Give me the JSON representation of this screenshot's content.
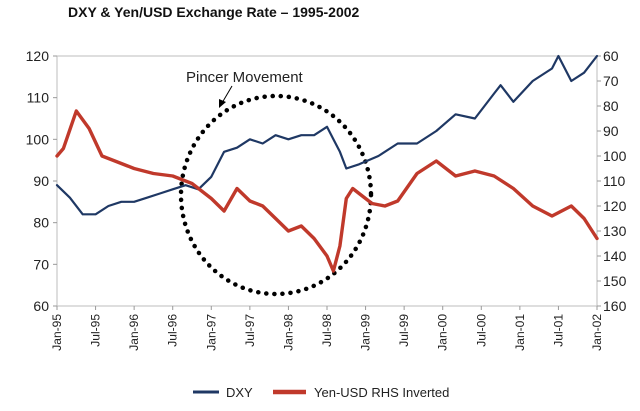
{
  "chart_data": {
    "type": "line",
    "title": "DXY & Yen/USD Exchange Rate – 1995-2002",
    "x_tick_labels": [
      "Jan-95",
      "Jul-95",
      "Jan-96",
      "Jul-96",
      "Jan-97",
      "Jul-97",
      "Jan-98",
      "Jul-98",
      "Jan-99",
      "Jul-99",
      "Jan-00",
      "Jul-00",
      "Jan-01",
      "Jul-01",
      "Jan-02"
    ],
    "y_left": {
      "min": 60,
      "max": 120,
      "ticks": [
        60,
        70,
        80,
        90,
        100,
        110,
        120
      ]
    },
    "y_right": {
      "min": 60,
      "max": 160,
      "inverted": true,
      "ticks": [
        60,
        70,
        80,
        90,
        100,
        110,
        120,
        130,
        140,
        150,
        160
      ]
    },
    "annotation": "Pincer Movement",
    "grid": false,
    "legend_position": "bottom",
    "series": [
      {
        "name": "DXY",
        "axis": "left",
        "color": "#1f3864",
        "x": [
          "1995-01",
          "1995-03",
          "1995-05",
          "1995-07",
          "1995-09",
          "1995-11",
          "1996-01",
          "1996-03",
          "1996-05",
          "1996-07",
          "1996-09",
          "1996-11",
          "1997-01",
          "1997-03",
          "1997-05",
          "1997-07",
          "1997-09",
          "1997-11",
          "1998-01",
          "1998-03",
          "1998-05",
          "1998-07",
          "1998-08",
          "1998-09",
          "1998-10",
          "1998-12",
          "1999-03",
          "1999-06",
          "1999-09",
          "1999-12",
          "2000-03",
          "2000-06",
          "2000-09",
          "2000-10",
          "2000-12",
          "2001-03",
          "2001-06",
          "2001-07",
          "2001-09",
          "2001-11",
          "2002-01"
        ],
        "values": [
          89,
          86,
          82,
          82,
          84,
          85,
          85,
          86,
          87,
          88,
          89,
          88,
          91,
          97,
          98,
          100,
          99,
          101,
          100,
          101,
          101,
          103,
          100,
          97,
          93,
          94,
          96,
          99,
          99,
          102,
          106,
          105,
          111,
          113,
          109,
          114,
          117,
          120,
          114,
          116,
          120
        ]
      },
      {
        "name": "Yen-USD RHS Inverted",
        "axis": "right",
        "color": "#c0392b",
        "x": [
          "1995-01",
          "1995-02",
          "1995-04",
          "1995-06",
          "1995-08",
          "1995-10",
          "1996-01",
          "1996-04",
          "1996-07",
          "1996-10",
          "1997-01",
          "1997-03",
          "1997-05",
          "1997-07",
          "1997-09",
          "1997-11",
          "1998-01",
          "1998-03",
          "1998-05",
          "1998-07",
          "1998-08",
          "1998-09",
          "1998-10",
          "1998-11",
          "1998-12",
          "1999-02",
          "1999-04",
          "1999-06",
          "1999-09",
          "1999-12",
          "2000-03",
          "2000-06",
          "2000-09",
          "2000-12",
          "2001-03",
          "2001-06",
          "2001-09",
          "2001-11",
          "2002-01"
        ],
        "values": [
          100,
          97,
          82,
          89,
          100,
          102,
          105,
          107,
          108,
          111,
          117,
          122,
          113,
          118,
          120,
          125,
          130,
          128,
          133,
          140,
          146,
          136,
          117,
          113,
          115,
          119,
          120,
          118,
          107,
          102,
          108,
          106,
          108,
          113,
          120,
          124,
          120,
          125,
          133
        ]
      }
    ]
  }
}
